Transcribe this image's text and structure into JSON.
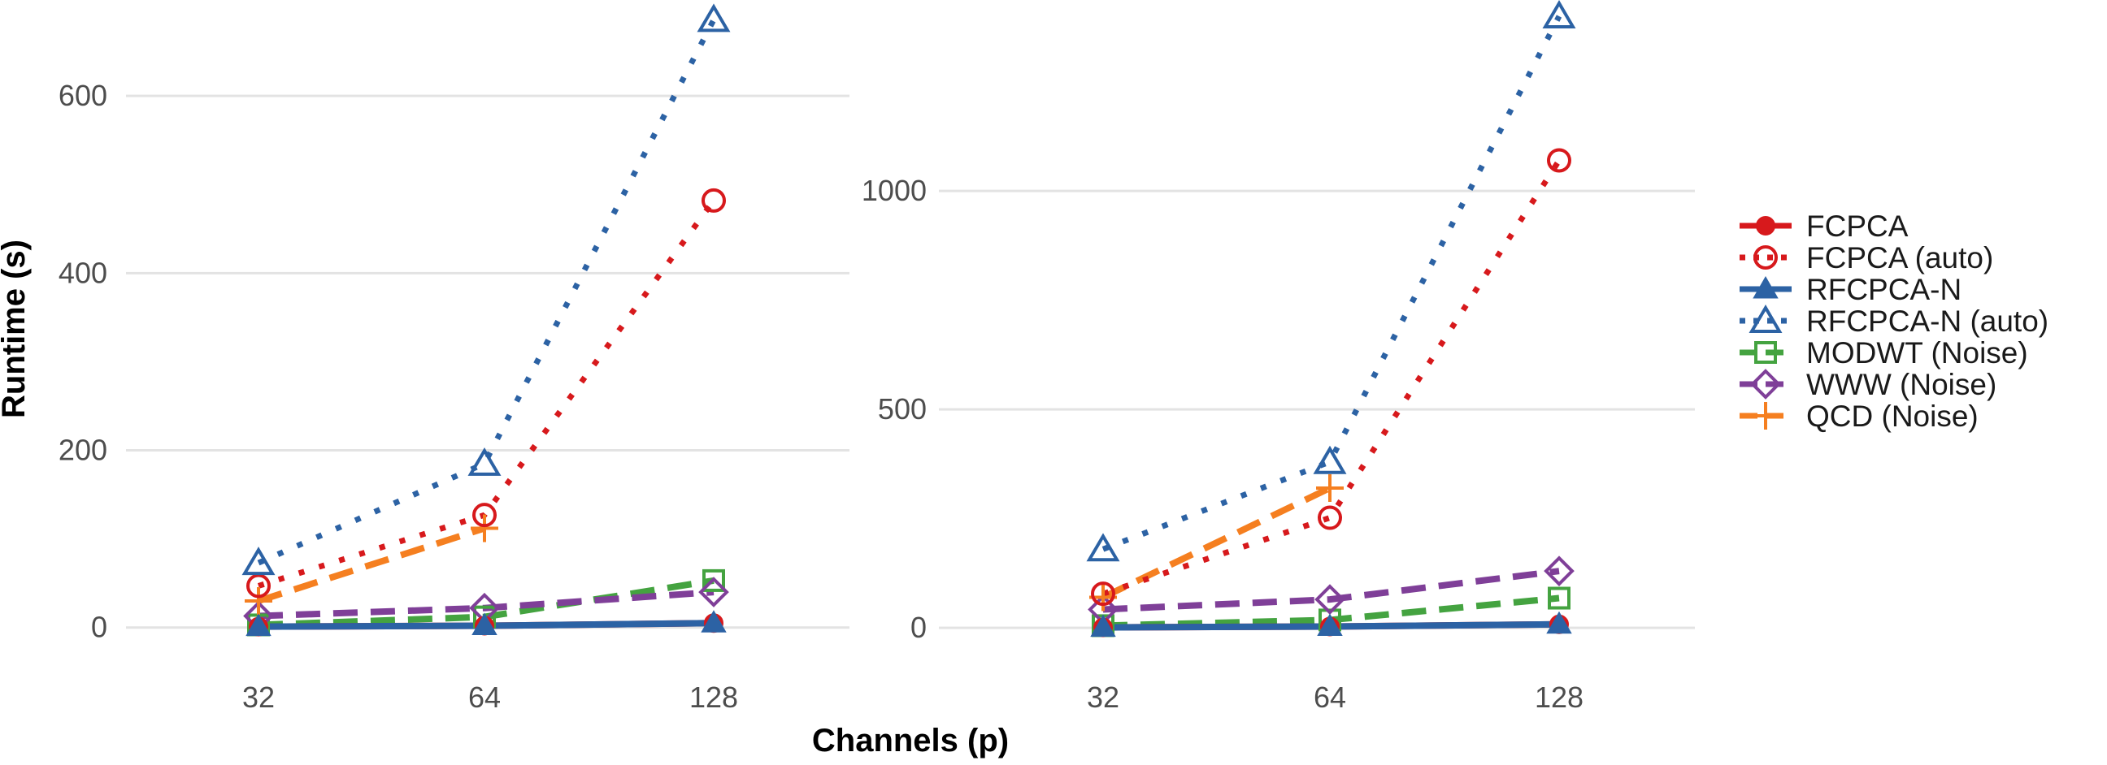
{
  "chart_data": {
    "type": "line",
    "xlabel": "Channels (p)",
    "ylabel": "Runtime (s)",
    "x": [
      "32",
      "64",
      "128"
    ],
    "series_styles": [
      {
        "name": "FCPCA",
        "color": "#d7191c",
        "dash": "solid",
        "marker": "filled-circle"
      },
      {
        "name": "FCPCA (auto)",
        "color": "#d7191c",
        "dash": "dotted",
        "marker": "open-circle"
      },
      {
        "name": "RFCPCA-N",
        "color": "#2c62a4",
        "dash": "solid",
        "marker": "filled-triangle"
      },
      {
        "name": "RFCPCA-N (auto)",
        "color": "#2c62a4",
        "dash": "dotted",
        "marker": "open-triangle"
      },
      {
        "name": "MODWT (Noise)",
        "color": "#44a340",
        "dash": "dashed",
        "marker": "open-square"
      },
      {
        "name": "WWW (Noise)",
        "color": "#7f3f98",
        "dash": "dashed",
        "marker": "open-diamond"
      },
      {
        "name": "QCD (Noise)",
        "color": "#f57f20",
        "dash": "dashed",
        "marker": "plus"
      }
    ],
    "panels": [
      {
        "ylim": [
          -25,
          690
        ],
        "yticks": [
          0,
          200,
          400,
          600
        ],
        "series": [
          {
            "name": "FCPCA",
            "values": [
              1,
              2,
              5
            ]
          },
          {
            "name": "FCPCA (auto)",
            "values": [
              47,
              127,
              482
            ]
          },
          {
            "name": "RFCPCA-N",
            "values": [
              1,
              2,
              5
            ]
          },
          {
            "name": "RFCPCA-N (auto)",
            "values": [
              73,
              185,
              686
            ]
          },
          {
            "name": "MODWT (Noise)",
            "values": [
              3,
              12,
              53
            ]
          },
          {
            "name": "WWW (Noise)",
            "values": [
              13,
              22,
              40
            ]
          },
          {
            "name": "QCD (Noise)",
            "values": [
              30,
              112,
              null
            ]
          }
        ]
      },
      {
        "ylim": [
          -50,
          1400
        ],
        "yticks": [
          0,
          500,
          1000
        ],
        "series": [
          {
            "name": "FCPCA",
            "values": [
              1,
              3,
              8
            ]
          },
          {
            "name": "FCPCA (auto)",
            "values": [
              78,
              252,
              1070
            ]
          },
          {
            "name": "RFCPCA-N",
            "values": [
              1,
              3,
              8
            ]
          },
          {
            "name": "RFCPCA-N (auto)",
            "values": [
              180,
              380,
              1400
            ]
          },
          {
            "name": "MODWT (Noise)",
            "values": [
              5,
              18,
              68
            ]
          },
          {
            "name": "WWW (Noise)",
            "values": [
              42,
              65,
              130
            ]
          },
          {
            "name": "QCD (Noise)",
            "values": [
              70,
              320,
              null
            ]
          }
        ]
      }
    ],
    "legend": [
      "FCPCA",
      "FCPCA (auto)",
      "RFCPCA-N",
      "RFCPCA-N (auto)",
      "MODWT (Noise)",
      "WWW (Noise)",
      "QCD (Noise)"
    ],
    "legend_position": "right",
    "grid": true
  }
}
